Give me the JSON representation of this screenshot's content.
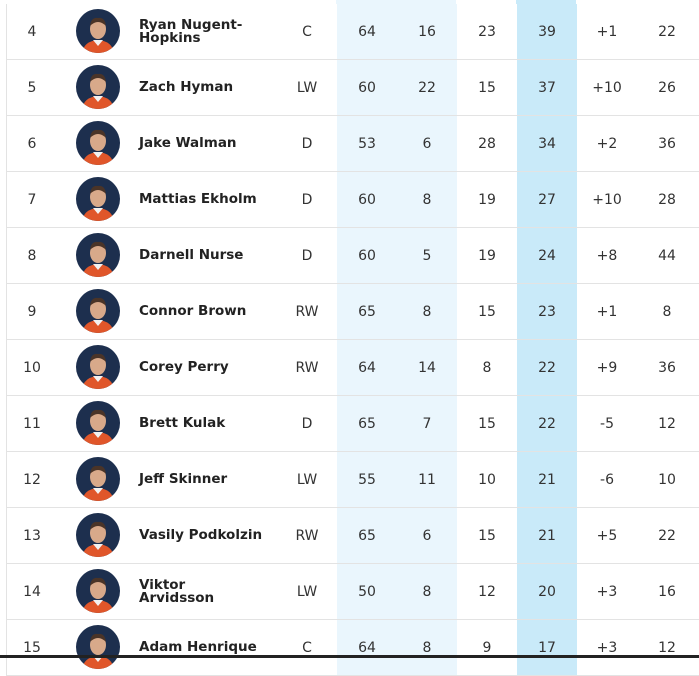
{
  "table": {
    "rows": [
      [
        "4",
        "Ryan Nugent-Hopkins",
        "C",
        "64",
        "16",
        "23",
        "39",
        "+1",
        "22"
      ],
      [
        "5",
        "Zach Hyman",
        "LW",
        "60",
        "22",
        "15",
        "37",
        "+10",
        "26"
      ],
      [
        "6",
        "Jake Walman",
        "D",
        "53",
        "6",
        "28",
        "34",
        "+2",
        "36"
      ],
      [
        "7",
        "Mattias Ekholm",
        "D",
        "60",
        "8",
        "19",
        "27",
        "+10",
        "28"
      ],
      [
        "8",
        "Darnell Nurse",
        "D",
        "60",
        "5",
        "19",
        "24",
        "+8",
        "44"
      ],
      [
        "9",
        "Connor Brown",
        "RW",
        "65",
        "8",
        "15",
        "23",
        "+1",
        "8"
      ],
      [
        "10",
        "Corey Perry",
        "RW",
        "64",
        "14",
        "8",
        "22",
        "+9",
        "36"
      ],
      [
        "11",
        "Brett Kulak",
        "D",
        "65",
        "7",
        "15",
        "22",
        "-5",
        "12"
      ],
      [
        "12",
        "Jeff Skinner",
        "LW",
        "55",
        "11",
        "10",
        "21",
        "-6",
        "10"
      ],
      [
        "13",
        "Vasily Podkolzin",
        "RW",
        "65",
        "6",
        "15",
        "21",
        "+5",
        "22"
      ],
      [
        "14",
        "Viktor Arvidsson",
        "LW",
        "50",
        "8",
        "12",
        "20",
        "+3",
        "16"
      ],
      [
        "15",
        "Adam Henrique",
        "C",
        "64",
        "8",
        "9",
        "17",
        "+3",
        "12"
      ]
    ]
  }
}
